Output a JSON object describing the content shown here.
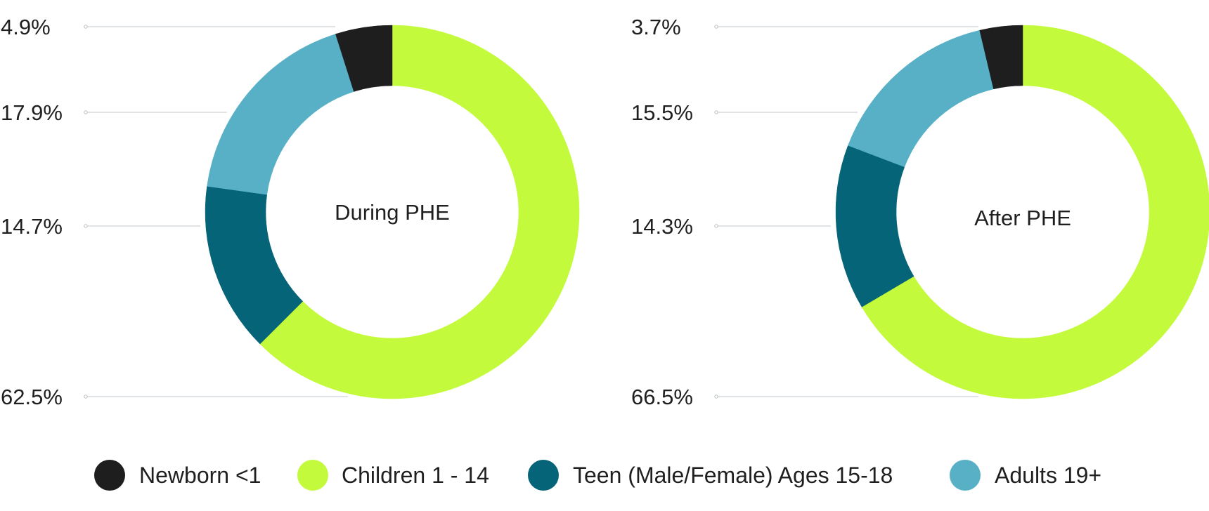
{
  "chart_data": [
    {
      "type": "pie",
      "center_label": "During PHE",
      "categories": [
        "Newborn <1",
        "Children 1 - 14",
        "Teen (Male/Female) Ages 15-18",
        "Adults 19+"
      ],
      "values": [
        4.9,
        62.5,
        14.7,
        17.9
      ],
      "labels": [
        "4.9%",
        "62.5%",
        "14.7%",
        "17.9%"
      ],
      "legend_position": "bottom"
    },
    {
      "type": "pie",
      "center_label": "After PHE",
      "categories": [
        "Newborn <1",
        "Children 1 - 14",
        "Teen (Male/Female) Ages 15-18",
        "Adults 19+"
      ],
      "values": [
        3.7,
        66.5,
        14.3,
        15.5
      ],
      "labels": [
        "3.7%",
        "66.5%",
        "14.3%",
        "15.5%"
      ],
      "legend_position": "bottom"
    }
  ],
  "legend": [
    {
      "label": "Newborn <1",
      "color": "#1e1e1e"
    },
    {
      "label": "Children 1 - 14",
      "color": "#c3fb3c"
    },
    {
      "label": "Teen (Male/Female) Ages 15-18",
      "color": "#066478"
    },
    {
      "label": "Adults 19+",
      "color": "#57b0c6"
    }
  ]
}
